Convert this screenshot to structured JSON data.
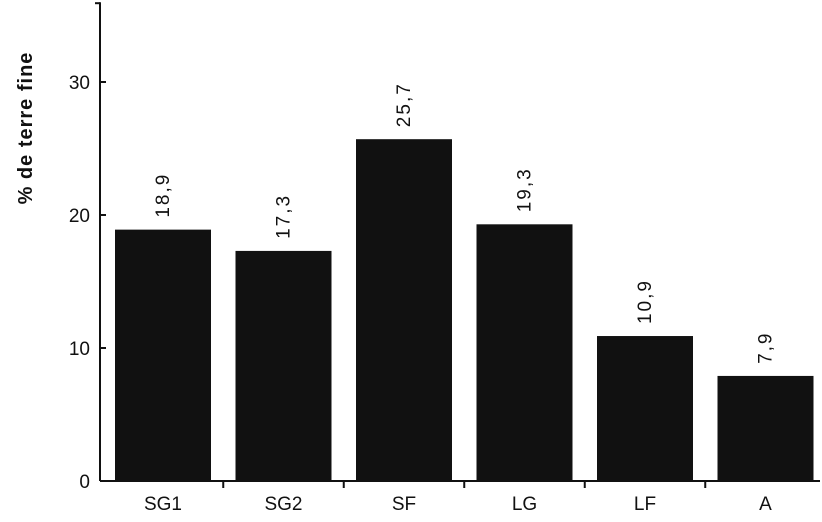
{
  "chart_data": {
    "type": "bar",
    "title": "",
    "xlabel": "",
    "ylabel": "% de terre fine",
    "ylim": [
      0,
      36
    ],
    "yticks": [
      0,
      10,
      20,
      30
    ],
    "categories": [
      "SG1",
      "SG2",
      "SF",
      "LG",
      "LF",
      "A"
    ],
    "values": [
      18.9,
      17.3,
      25.7,
      19.3,
      10.9,
      7.9
    ],
    "value_labels": [
      "18,9",
      "17,3",
      "25,7",
      "19,3",
      "10,9",
      "7,9"
    ],
    "bar_color": "#111111",
    "grid": false,
    "legend": "none"
  }
}
